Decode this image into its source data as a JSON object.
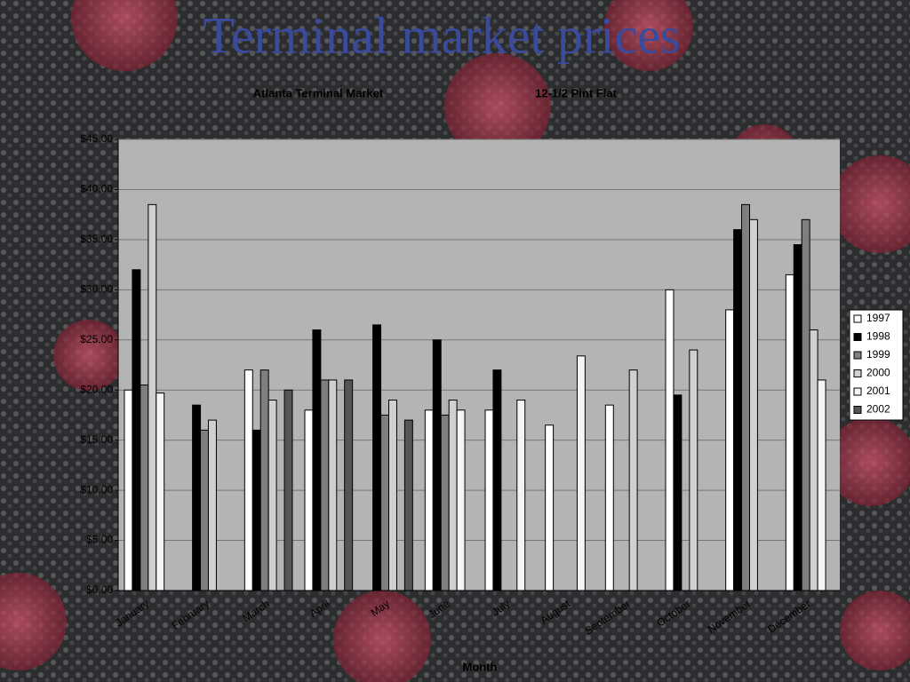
{
  "chart_data": {
    "type": "bar",
    "title": "Terminal market prices",
    "subtitle_left": "Atlanta Terminal Market",
    "subtitle_right": "12-1/2 Pint Flat",
    "x_label": "Month",
    "categories": [
      "January",
      "February",
      "March",
      "April",
      "May",
      "June",
      "July",
      "August",
      "September",
      "October",
      "November",
      "December"
    ],
    "series": [
      {
        "name": "1997",
        "color": "#ffffff",
        "values": [
          20,
          null,
          22,
          18,
          null,
          18,
          18,
          16.5,
          18.5,
          30,
          28,
          31.5
        ]
      },
      {
        "name": "1998",
        "color": "#000000",
        "values": [
          32,
          18.5,
          16,
          26,
          26.5,
          25,
          22,
          null,
          null,
          19.5,
          36,
          34.5
        ]
      },
      {
        "name": "1999",
        "color": "#7f7f7f",
        "values": [
          20.5,
          16,
          22,
          21,
          17.5,
          17.5,
          null,
          null,
          null,
          null,
          38.5,
          37
        ]
      },
      {
        "name": "2000",
        "color": "#d0d0d0",
        "values": [
          38.5,
          17,
          19,
          21,
          19,
          19,
          null,
          null,
          22,
          24,
          37,
          26
        ]
      },
      {
        "name": "2001",
        "color": "#f4f4f4",
        "values": [
          19.7,
          null,
          null,
          null,
          null,
          18,
          19,
          23.4,
          null,
          null,
          null,
          21
        ]
      },
      {
        "name": "2002",
        "color": "#555555",
        "values": [
          null,
          null,
          20,
          21,
          17,
          null,
          null,
          null,
          null,
          null,
          null,
          null
        ]
      }
    ],
    "ylim": [
      0,
      45
    ],
    "yticks": [
      {
        "value": 0,
        "label": "$0.00"
      },
      {
        "value": 5,
        "label": "$5.00"
      },
      {
        "value": 10,
        "label": "$10.00"
      },
      {
        "value": 15,
        "label": "$15.00"
      },
      {
        "value": 20,
        "label": "$20.00"
      },
      {
        "value": 25,
        "label": "$25.00"
      },
      {
        "value": 30,
        "label": "$30.00"
      },
      {
        "value": 35,
        "label": "$35.00"
      },
      {
        "value": 40,
        "label": "$40.00"
      },
      {
        "value": 45,
        "label": "$45.00"
      }
    ],
    "grid": true
  }
}
